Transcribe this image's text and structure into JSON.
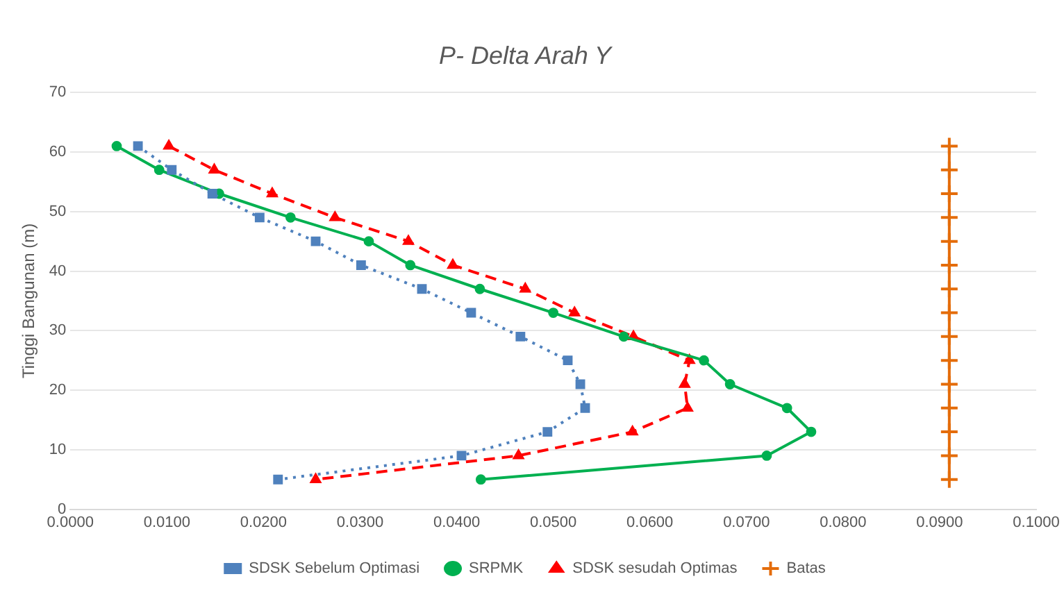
{
  "chart_data": {
    "type": "line",
    "title": "P- Delta Arah Y",
    "ylabel": "Tinggi Bangunan (m)",
    "xlim": [
      0,
      0.1
    ],
    "xticks": [
      {
        "value": 0,
        "label": "0.0000"
      },
      {
        "value": 0.01,
        "label": "0.0100"
      },
      {
        "value": 0.02,
        "label": "0.0200"
      },
      {
        "value": 0.03,
        "label": "0.0300"
      },
      {
        "value": 0.04,
        "label": "0.0400"
      },
      {
        "value": 0.05,
        "label": "0.0500"
      },
      {
        "value": 0.06,
        "label": "0.0600"
      },
      {
        "value": 0.07,
        "label": "0.0700"
      },
      {
        "value": 0.08,
        "label": "0.0800"
      },
      {
        "value": 0.09,
        "label": "0.0900"
      },
      {
        "value": 0.1,
        "label": "0.1000"
      }
    ],
    "ylim": [
      0,
      70
    ],
    "yticks": [
      0,
      10,
      20,
      30,
      40,
      50,
      60,
      70
    ],
    "grid": "y",
    "legend": "bottom",
    "series": [
      {
        "name": "SRPMK",
        "color": "#00b050",
        "marker": "circle",
        "line_style": "solid",
        "x": [
          0.0048,
          0.0092,
          0.0154,
          0.0228,
          0.0309,
          0.0352,
          0.0424,
          0.05,
          0.0573,
          0.0656,
          0.0683,
          0.0742,
          0.0767,
          0.0721,
          0.0425
        ],
        "values": [
          61,
          57,
          53,
          49,
          45,
          41,
          37,
          33,
          29,
          25,
          21,
          17,
          13,
          9,
          5
        ]
      },
      {
        "name": "SDSK Sebelum Optimasi",
        "color": "#4f81bd",
        "marker": "square",
        "line_style": "dotted",
        "x": [
          0.007,
          0.0105,
          0.0147,
          0.0196,
          0.0254,
          0.0301,
          0.0364,
          0.0415,
          0.0466,
          0.0515,
          0.0528,
          0.0533,
          0.0494,
          0.0405,
          0.0215
        ],
        "values": [
          61,
          57,
          53,
          49,
          45,
          41,
          37,
          33,
          29,
          25,
          21,
          17,
          13,
          9,
          5
        ]
      },
      {
        "name": "SDSK sesudah Optimas",
        "color": "#ff0000",
        "marker": "triangle",
        "line_style": "dashed",
        "x": [
          0.0102,
          0.0149,
          0.0209,
          0.0274,
          0.035,
          0.0396,
          0.0471,
          0.0522,
          0.0583,
          0.0641,
          0.0636,
          0.0639,
          0.0582,
          0.0464,
          0.0254
        ],
        "values": [
          61,
          57,
          53,
          49,
          45,
          41,
          37,
          33,
          29,
          25,
          21,
          17,
          13,
          9,
          5
        ]
      },
      {
        "name": "Batas",
        "color": "#e46c0a",
        "marker": "cross",
        "line_style": "solid",
        "x": [
          0.091,
          0.091,
          0.091,
          0.091,
          0.091,
          0.091,
          0.091,
          0.091,
          0.091,
          0.091,
          0.091,
          0.091,
          0.091,
          0.091,
          0.091
        ],
        "values": [
          61,
          57,
          53,
          49,
          45,
          41,
          37,
          33,
          29,
          25,
          21,
          17,
          13,
          9,
          5
        ]
      }
    ]
  }
}
